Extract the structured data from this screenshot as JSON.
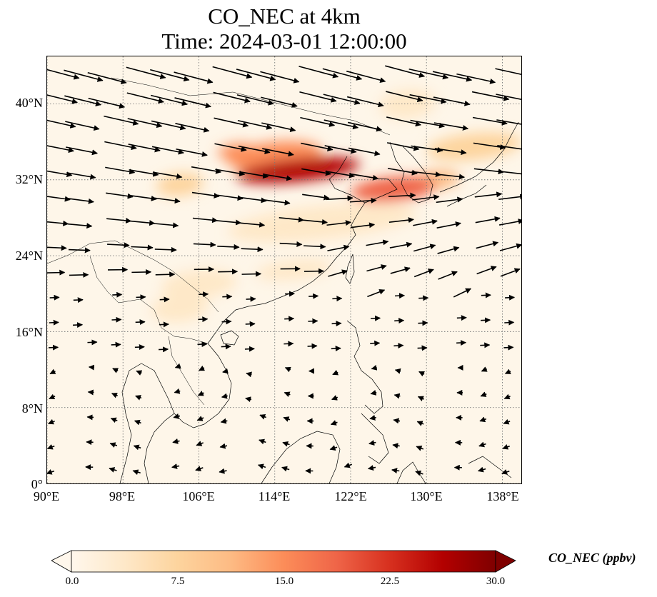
{
  "title": {
    "line1": "CO_NEC at 4km",
    "line2": "Time: 2024-03-01 12:00:00"
  },
  "map": {
    "extent": {
      "lon_min": 90,
      "lon_max": 140,
      "lat_min": 0,
      "lat_max": 45
    },
    "lat_ticks": [
      {
        "value": 40,
        "label": "40°N"
      },
      {
        "value": 32,
        "label": "32°N"
      },
      {
        "value": 24,
        "label": "24°N"
      },
      {
        "value": 16,
        "label": "16°N"
      },
      {
        "value": 8,
        "label": "8°N"
      },
      {
        "value": 0,
        "label": "0°"
      }
    ],
    "lon_ticks": [
      {
        "value": 90,
        "label": "90°E"
      },
      {
        "value": 98,
        "label": "98°E"
      },
      {
        "value": 106,
        "label": "106°E"
      },
      {
        "value": 114,
        "label": "114°E"
      },
      {
        "value": 122,
        "label": "122°E"
      },
      {
        "value": 130,
        "label": "130°E"
      },
      {
        "value": 138,
        "label": "138°E"
      }
    ],
    "gridlines": true,
    "field_colormap": "OrRd",
    "plumes": [
      {
        "lon": 116.5,
        "lat": 33.0,
        "rx_deg": 6.5,
        "ry_deg": 1.2,
        "value": 28
      },
      {
        "lon": 114.0,
        "lat": 34.5,
        "rx_deg": 5.0,
        "ry_deg": 1.5,
        "value": 15
      },
      {
        "lon": 110.0,
        "lat": 35.0,
        "rx_deg": 2.0,
        "ry_deg": 0.8,
        "value": 16
      },
      {
        "lon": 126.5,
        "lat": 31.0,
        "rx_deg": 4.5,
        "ry_deg": 1.3,
        "value": 19
      },
      {
        "lon": 131.0,
        "lat": 32.0,
        "rx_deg": 2.5,
        "ry_deg": 1.0,
        "value": 12
      },
      {
        "lon": 135.0,
        "lat": 35.5,
        "rx_deg": 5.0,
        "ry_deg": 1.4,
        "value": 7
      },
      {
        "lon": 104.0,
        "lat": 31.5,
        "rx_deg": 2.5,
        "ry_deg": 1.2,
        "value": 6
      },
      {
        "lon": 119.0,
        "lat": 27.5,
        "rx_deg": 10.0,
        "ry_deg": 1.8,
        "value": 4
      },
      {
        "lon": 116.0,
        "lat": 22.5,
        "rx_deg": 4.0,
        "ry_deg": 1.0,
        "value": 5
      },
      {
        "lon": 106.0,
        "lat": 21.0,
        "rx_deg": 4.0,
        "ry_deg": 1.5,
        "value": 4
      },
      {
        "lon": 104.0,
        "lat": 18.5,
        "rx_deg": 3.0,
        "ry_deg": 1.5,
        "value": 3
      },
      {
        "lon": 128.0,
        "lat": 40.0,
        "rx_deg": 3.0,
        "ry_deg": 1.5,
        "value": 4
      }
    ]
  },
  "colorbar": {
    "min": 0.0,
    "max": 30.0,
    "ticks": [
      "0.0",
      "7.5",
      "15.0",
      "22.5",
      "30.0"
    ],
    "label": "CO_NEC (ppbv)",
    "extend": "both",
    "colors": [
      "#fff7ec",
      "#fee8c8",
      "#fdd49e",
      "#fdbb84",
      "#fc8d59",
      "#ef6548",
      "#d7301f",
      "#b30000",
      "#7f0000"
    ]
  }
}
